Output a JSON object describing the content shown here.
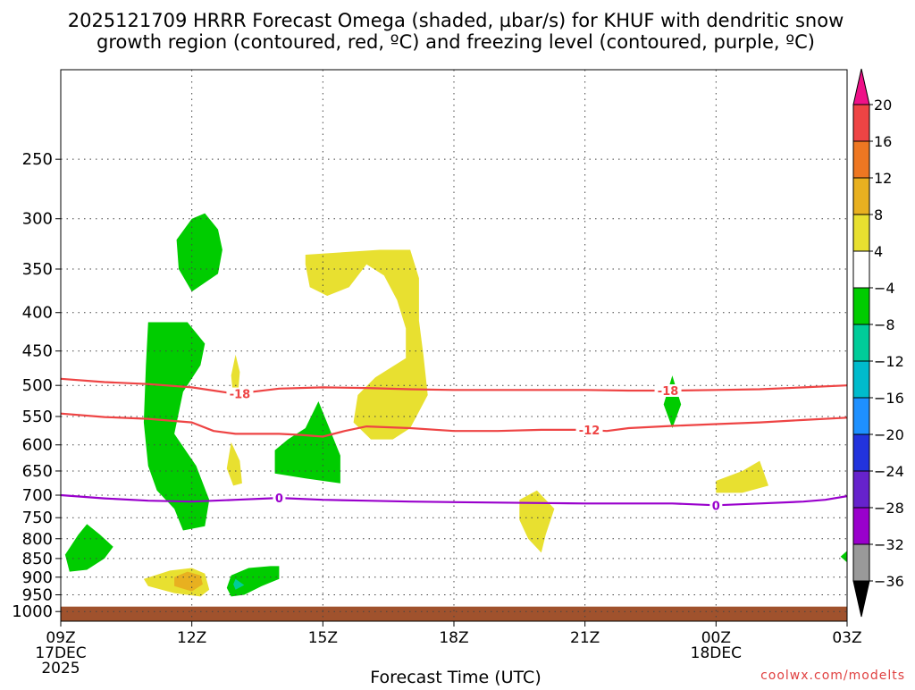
{
  "chart_data": {
    "type": "heatmap",
    "title": "2025121709 HRRR Forecast Omega (shaded, µbar/s) for KHUF with dendritic snow growth region (contoured, red, ºC) and freezing level (contoured, purple, ºC)",
    "title_lines": [
      "2025121709 HRRR Forecast Omega (shaded, µbar/s) for KHUF with dendritic snow",
      "growth region (contoured, red, ºC) and freezing level (contoured, purple, ºC)"
    ],
    "xlabel": "Forecast Time (UTC)",
    "ylabel": "",
    "credit": "coolwx.com/modelts",
    "x_range": [
      9,
      27
    ],
    "y_range": [
      1030,
      190
    ],
    "y_scale": "log-pressure",
    "grid": true,
    "x_ticks": [
      {
        "x": 9,
        "label": "09Z",
        "sub": [
          "17DEC",
          "2025"
        ]
      },
      {
        "x": 12,
        "label": "12Z"
      },
      {
        "x": 15,
        "label": "15Z"
      },
      {
        "x": 18,
        "label": "18Z"
      },
      {
        "x": 21,
        "label": "21Z"
      },
      {
        "x": 24,
        "label": "00Z",
        "sub": [
          "18DEC"
        ]
      },
      {
        "x": 27,
        "label": "03Z"
      }
    ],
    "y_ticks": [
      {
        "p": 250,
        "label": "250"
      },
      {
        "p": 300,
        "label": "300"
      },
      {
        "p": 350,
        "label": "350"
      },
      {
        "p": 400,
        "label": "400"
      },
      {
        "p": 450,
        "label": "450"
      },
      {
        "p": 500,
        "label": "500"
      },
      {
        "p": 550,
        "label": "550"
      },
      {
        "p": 600,
        "label": "600"
      },
      {
        "p": 650,
        "label": "650"
      },
      {
        "p": 700,
        "label": "700"
      },
      {
        "p": 750,
        "label": "750"
      },
      {
        "p": 800,
        "label": "800"
      },
      {
        "p": 850,
        "label": "850"
      },
      {
        "p": 900,
        "label": "900"
      },
      {
        "p": 950,
        "label": "950"
      },
      {
        "p": 1000,
        "label": "1000"
      }
    ],
    "ground": {
      "color": "#A0522D",
      "pressure_top": 985
    },
    "contours": [
      {
        "label": "-18",
        "color": "#EE4444",
        "label_at": [
          [
            13.1,
            513
          ],
          [
            22.9,
            508
          ]
        ],
        "points": [
          [
            9,
            490
          ],
          [
            10,
            495
          ],
          [
            11,
            498
          ],
          [
            12,
            503
          ],
          [
            13,
            513
          ],
          [
            14,
            505
          ],
          [
            15,
            503
          ],
          [
            16,
            504
          ],
          [
            17,
            506
          ],
          [
            18,
            507
          ],
          [
            19,
            507
          ],
          [
            20,
            507
          ],
          [
            21,
            507
          ],
          [
            22,
            508
          ],
          [
            23,
            508
          ],
          [
            24,
            507
          ],
          [
            25,
            506
          ],
          [
            26,
            503
          ],
          [
            27,
            500
          ]
        ]
      },
      {
        "label": "-12",
        "color": "#EE4444",
        "label_at": [
          [
            21.1,
            573
          ]
        ],
        "points": [
          [
            9,
            545
          ],
          [
            10,
            551
          ],
          [
            11,
            554
          ],
          [
            12,
            560
          ],
          [
            12.5,
            575
          ],
          [
            13,
            580
          ],
          [
            14,
            580
          ],
          [
            14.5,
            582
          ],
          [
            15,
            585
          ],
          [
            15.5,
            575
          ],
          [
            16,
            567
          ],
          [
            17,
            570
          ],
          [
            18,
            575
          ],
          [
            19,
            575
          ],
          [
            20,
            573
          ],
          [
            21,
            573
          ],
          [
            21.5,
            575
          ],
          [
            22,
            570
          ],
          [
            23,
            566
          ],
          [
            24,
            563
          ],
          [
            25,
            560
          ],
          [
            26,
            556
          ],
          [
            27,
            552
          ]
        ]
      },
      {
        "label": "0",
        "color": "#9900CC",
        "label_at": [
          [
            14.0,
            706
          ],
          [
            24.0,
            722
          ]
        ],
        "points": [
          [
            9,
            700
          ],
          [
            10,
            707
          ],
          [
            11,
            712
          ],
          [
            12,
            714
          ],
          [
            13,
            710
          ],
          [
            14,
            706
          ],
          [
            15,
            710
          ],
          [
            16,
            712
          ],
          [
            17,
            714
          ],
          [
            18,
            715
          ],
          [
            19,
            716
          ],
          [
            20,
            717
          ],
          [
            21,
            718
          ],
          [
            22,
            718
          ],
          [
            23,
            718
          ],
          [
            24,
            722
          ],
          [
            25,
            718
          ],
          [
            26,
            714
          ],
          [
            26.5,
            710
          ],
          [
            27,
            702
          ]
        ]
      }
    ],
    "shaded_regions": [
      {
        "range": [
          -8,
          -4
        ],
        "color": "#00CC00",
        "points": [
          [
            12.0,
            300
          ],
          [
            12.3,
            295
          ],
          [
            12.6,
            310
          ],
          [
            12.7,
            330
          ],
          [
            12.6,
            355
          ],
          [
            12.0,
            375
          ],
          [
            11.7,
            350
          ],
          [
            11.65,
            320
          ]
        ]
      },
      {
        "range": [
          -8,
          -4
        ],
        "color": "#00CC00",
        "points": [
          [
            11.0,
            412
          ],
          [
            11.9,
            412
          ],
          [
            12.3,
            440
          ],
          [
            12.2,
            470
          ],
          [
            11.8,
            510
          ],
          [
            11.6,
            580
          ],
          [
            12.1,
            640
          ],
          [
            12.4,
            710
          ],
          [
            12.3,
            770
          ],
          [
            11.8,
            780
          ],
          [
            11.6,
            730
          ],
          [
            11.2,
            690
          ],
          [
            11.0,
            640
          ],
          [
            10.9,
            560
          ],
          [
            10.95,
            470
          ]
        ]
      },
      {
        "range": [
          -8,
          -4
        ],
        "color": "#00CC00",
        "points": [
          [
            9.1,
            840
          ],
          [
            9.4,
            790
          ],
          [
            9.6,
            765
          ],
          [
            9.9,
            790
          ],
          [
            10.2,
            820
          ],
          [
            10.0,
            850
          ],
          [
            9.6,
            880
          ],
          [
            9.2,
            885
          ]
        ]
      },
      {
        "range": [
          -8,
          -4
        ],
        "color": "#00CC00",
        "points": [
          [
            13.8,
            870
          ],
          [
            14.0,
            870
          ],
          [
            14.0,
            905
          ],
          [
            13.6,
            925
          ],
          [
            13.2,
            950
          ],
          [
            12.9,
            955
          ],
          [
            12.8,
            930
          ],
          [
            12.9,
            895
          ],
          [
            13.3,
            875
          ]
        ]
      },
      {
        "range": [
          -8,
          -4
        ],
        "color": "#00CC00",
        "points": [
          [
            14.9,
            525
          ],
          [
            15.2,
            580
          ],
          [
            15.4,
            620
          ],
          [
            15.4,
            675
          ],
          [
            14.6,
            665
          ],
          [
            13.9,
            655
          ],
          [
            13.9,
            610
          ],
          [
            14.2,
            590
          ],
          [
            14.6,
            570
          ]
        ]
      },
      {
        "range": [
          -8,
          -4
        ],
        "color": "#00CC00",
        "points": [
          [
            23.0,
            485
          ],
          [
            23.2,
            530
          ],
          [
            23.0,
            570
          ],
          [
            22.8,
            530
          ]
        ]
      },
      {
        "range": [
          -8,
          -4
        ],
        "color": "#00CC00",
        "points": [
          [
            27,
            830
          ],
          [
            27,
            860
          ],
          [
            26.85,
            845
          ]
        ]
      },
      {
        "range": [
          -12,
          -8
        ],
        "color": "#00CC99",
        "points": [
          [
            13.0,
            905
          ],
          [
            13.2,
            922
          ],
          [
            13.0,
            935
          ],
          [
            12.95,
            920
          ]
        ]
      },
      {
        "range": [
          4,
          8
        ],
        "color": "#E8E030",
        "points": [
          [
            14.6,
            335
          ],
          [
            16.3,
            330
          ],
          [
            17.0,
            330
          ],
          [
            17.2,
            360
          ],
          [
            17.2,
            410
          ],
          [
            17.3,
            455
          ],
          [
            17.4,
            515
          ],
          [
            17.0,
            570
          ],
          [
            16.6,
            590
          ],
          [
            16.1,
            590
          ],
          [
            15.7,
            560
          ],
          [
            15.8,
            515
          ],
          [
            16.2,
            488
          ],
          [
            16.9,
            460
          ],
          [
            16.9,
            420
          ],
          [
            16.7,
            385
          ],
          [
            16.4,
            357
          ],
          [
            16.0,
            345
          ],
          [
            15.6,
            370
          ],
          [
            15.1,
            380
          ],
          [
            14.7,
            370
          ],
          [
            14.6,
            345
          ]
        ]
      },
      {
        "range": [
          4,
          8
        ],
        "color": "#E8E030",
        "points": [
          [
            13.0,
            455
          ],
          [
            13.1,
            480
          ],
          [
            13.05,
            520
          ],
          [
            12.95,
            520
          ],
          [
            12.9,
            485
          ]
        ]
      },
      {
        "range": [
          4,
          8
        ],
        "color": "#E8E030",
        "points": [
          [
            12.9,
            595
          ],
          [
            13.1,
            630
          ],
          [
            13.15,
            675
          ],
          [
            12.95,
            680
          ],
          [
            12.8,
            645
          ]
        ]
      },
      {
        "range": [
          4,
          8
        ],
        "color": "#E8E030",
        "points": [
          [
            10.9,
            905
          ],
          [
            11.5,
            882
          ],
          [
            12.0,
            875
          ],
          [
            12.3,
            890
          ],
          [
            12.4,
            935
          ],
          [
            12.2,
            955
          ],
          [
            11.6,
            945
          ],
          [
            11.0,
            925
          ]
        ]
      },
      {
        "range": [
          4,
          8
        ],
        "color": "#E8E030",
        "points": [
          [
            19.9,
            690
          ],
          [
            20.3,
            730
          ],
          [
            20.1,
            790
          ],
          [
            20.0,
            835
          ],
          [
            19.7,
            800
          ],
          [
            19.5,
            755
          ],
          [
            19.5,
            710
          ]
        ]
      },
      {
        "range": [
          4,
          8
        ],
        "color": "#E8E030",
        "points": [
          [
            24.0,
            670
          ],
          [
            24.6,
            650
          ],
          [
            25.0,
            630
          ],
          [
            25.2,
            680
          ],
          [
            24.6,
            695
          ],
          [
            24.0,
            695
          ]
        ]
      },
      {
        "range": [
          8,
          12
        ],
        "color": "#E8B020",
        "points": [
          [
            11.6,
            900
          ],
          [
            11.9,
            885
          ],
          [
            12.2,
            895
          ],
          [
            12.25,
            920
          ],
          [
            12.0,
            940
          ],
          [
            11.6,
            925
          ]
        ]
      }
    ],
    "colorbar": {
      "levels": [
        "20",
        "16",
        "12",
        "8",
        "4",
        "−4",
        "−8",
        "−12",
        "−16",
        "−20",
        "−24",
        "−28",
        "−32",
        "−36"
      ],
      "bins": [
        {
          "range": [
            16,
            20
          ],
          "color": "#EE4444"
        },
        {
          "range": [
            12,
            16
          ],
          "color": "#EE7722"
        },
        {
          "range": [
            8,
            12
          ],
          "color": "#E8B020"
        },
        {
          "range": [
            4,
            8
          ],
          "color": "#E8E030"
        },
        {
          "range": [
            -4,
            4
          ],
          "color": "#FFFFFF"
        },
        {
          "range": [
            -8,
            -4
          ],
          "color": "#00CC00"
        },
        {
          "range": [
            -12,
            -8
          ],
          "color": "#00CC99"
        },
        {
          "range": [
            -16,
            -12
          ],
          "color": "#00BBCC"
        },
        {
          "range": [
            -20,
            -16
          ],
          "color": "#1E90FF"
        },
        {
          "range": [
            -24,
            -20
          ],
          "color": "#2233DD"
        },
        {
          "range": [
            -28,
            -24
          ],
          "color": "#6622CC"
        },
        {
          "range": [
            -32,
            -28
          ],
          "color": "#9900CC"
        },
        {
          "range": [
            -36,
            -32
          ],
          "color": "#999999"
        }
      ],
      "over_color": "#EE1188",
      "under_color": "#000000"
    }
  }
}
